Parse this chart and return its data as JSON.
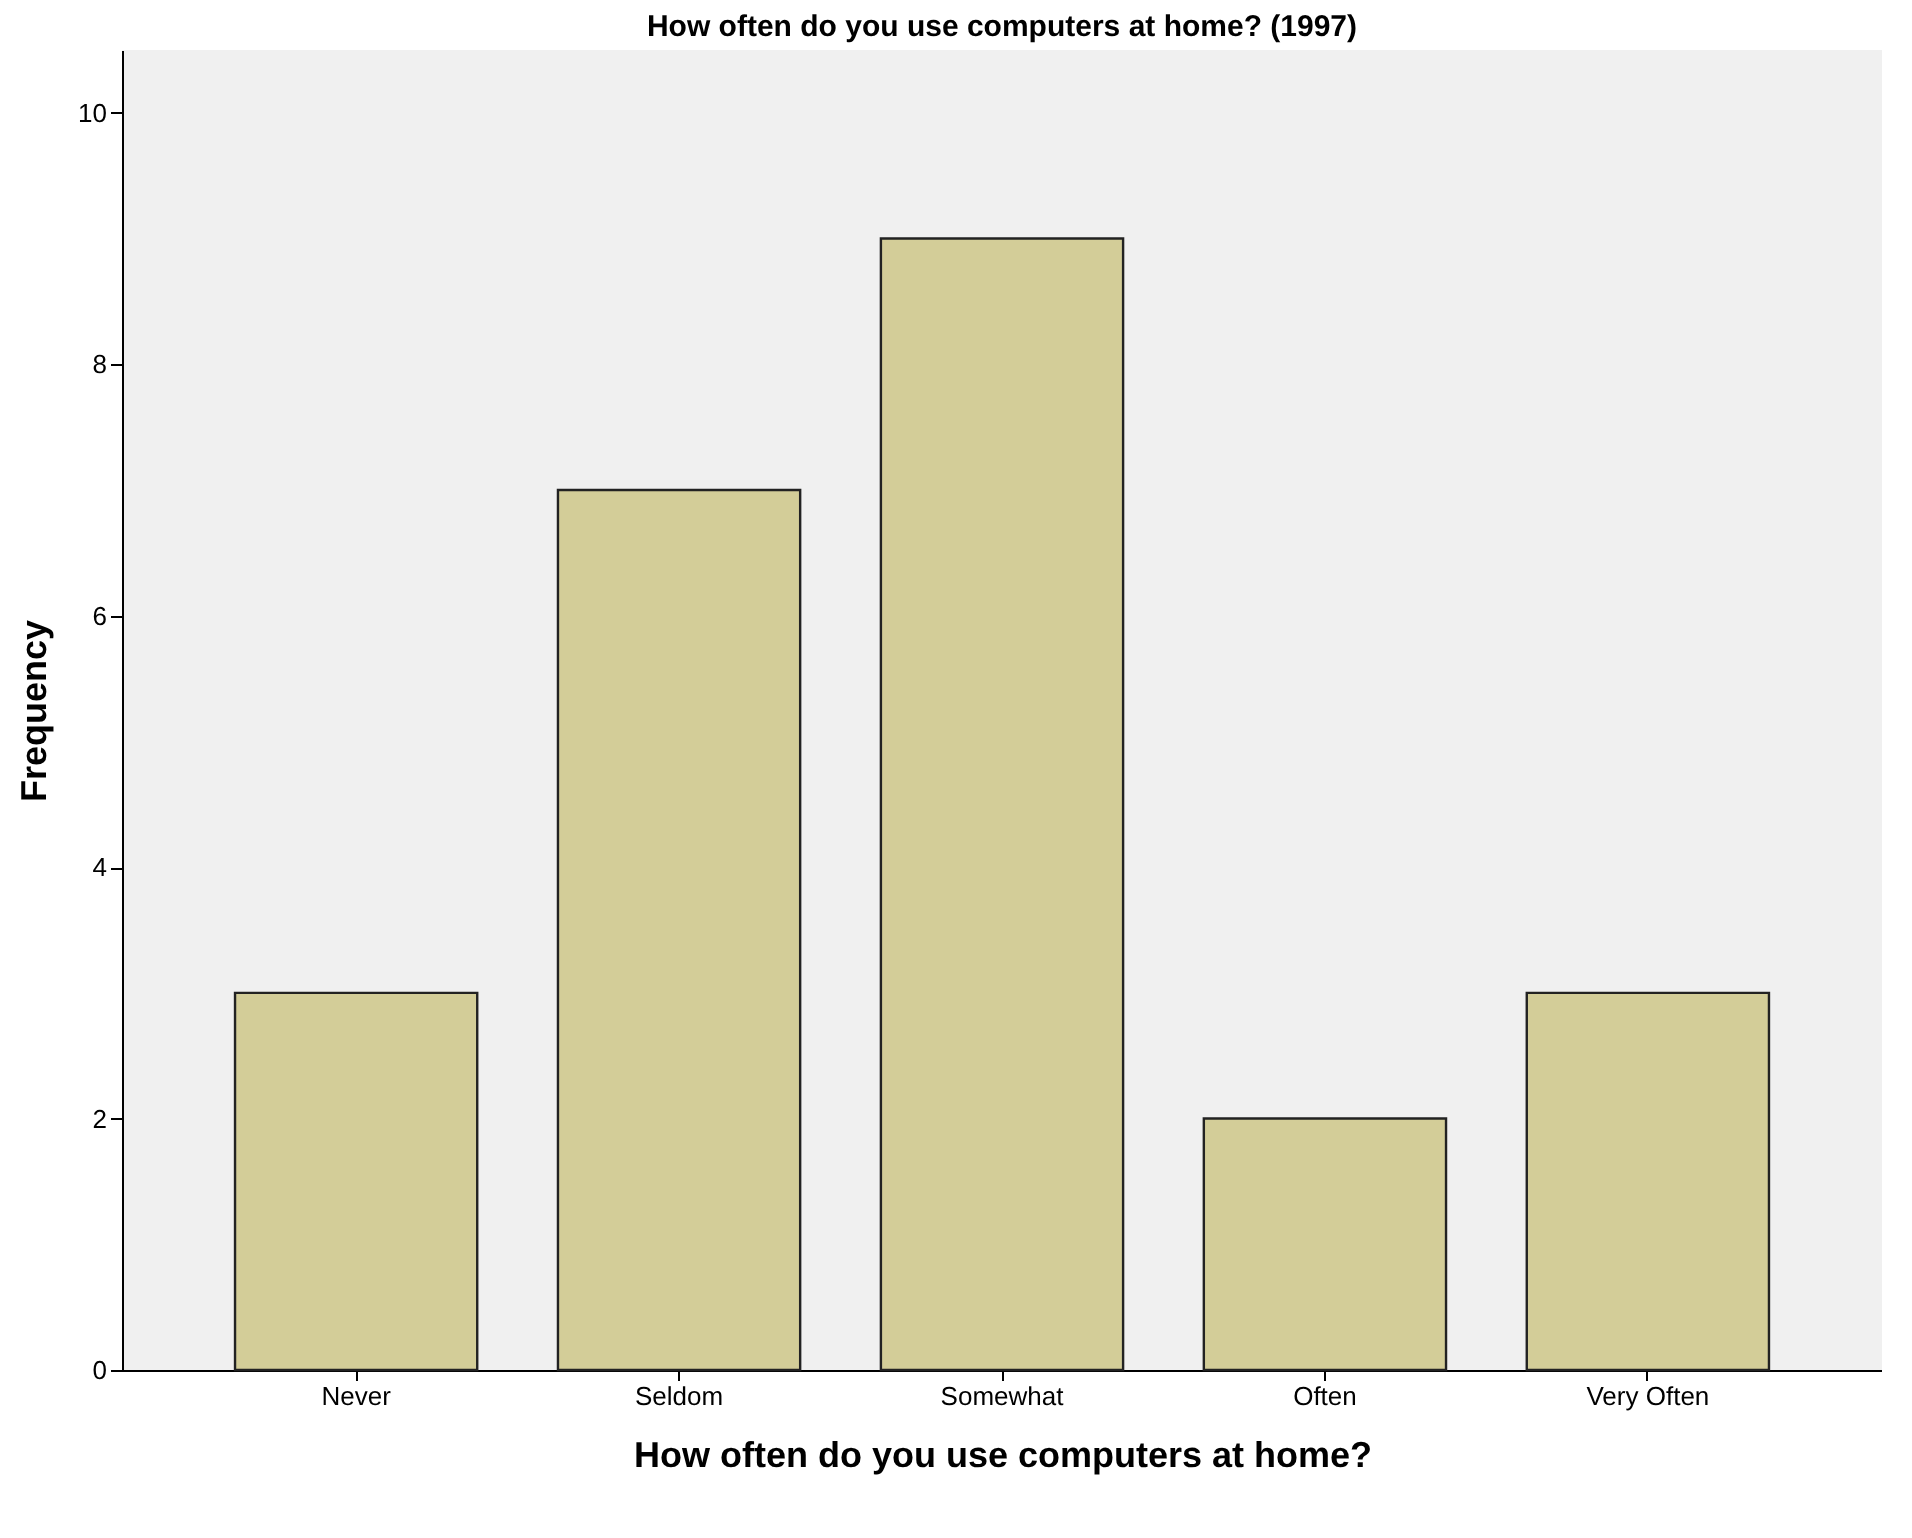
{
  "chart_data": {
    "type": "bar",
    "title": "How often do you use computers at home? (1997)",
    "xlabel": "How often do you use computers at home?",
    "ylabel": "Frequency",
    "categories": [
      "Never",
      "Seldom",
      "Somewhat",
      "Often",
      "Very Often"
    ],
    "values": [
      3,
      7,
      9,
      2,
      3
    ],
    "color": "#d3cd98",
    "ylim": [
      0,
      10.5
    ],
    "yticks": [
      0,
      2,
      4,
      6,
      8,
      10
    ],
    "grid": false
  }
}
